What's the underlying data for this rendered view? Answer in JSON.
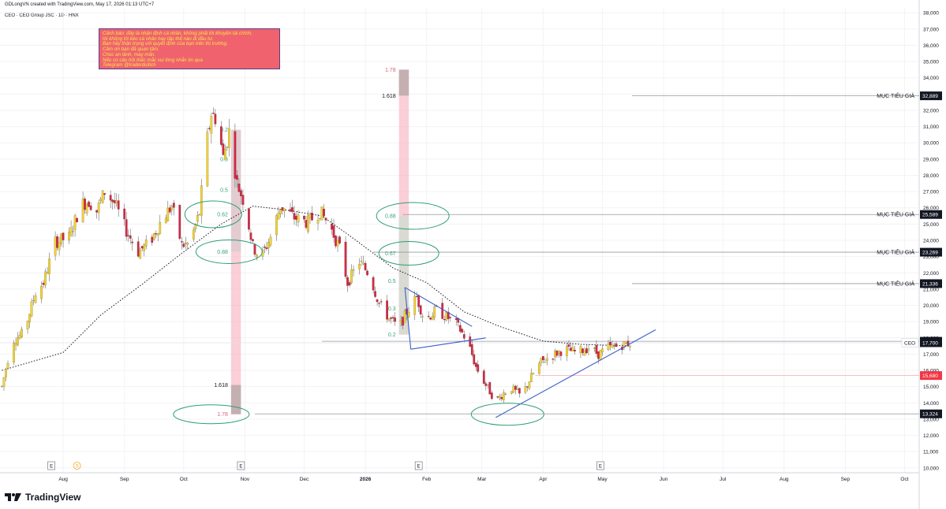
{
  "header": {
    "attribution": "GDLongVN created with TradingView.com, May 17, 2026 01:13 UTC+7",
    "symbol_line": "CEO · CEO Group JSC · 1D · HNX"
  },
  "disclaimer": [
    "Cảnh báo: đây là nhận định cá nhân, không phải lời khuyên tài chính,",
    "tôi không lôi kéo cá nhân hay tập thể nào đi đầu tư.",
    "Bạn hãy thận trọng với quyết định của bạn trên thị trường.",
    "Cảm ơn bạn đã quan tâm.",
    "Chúc an lành, may mắn.",
    "Nếu có câu hỏi thắc mắc vui lòng nhắn tin qua",
    "Telegram @traderduitich"
  ],
  "footer": {
    "brand": "TradingView"
  },
  "colors": {
    "bull": "#f2d23c",
    "bear": "#d42a45",
    "trend": "#3b5fc9",
    "ellipse": "#2e9e78",
    "target_tag": "#131722",
    "support_tag": "#131722",
    "cutloss_tag": "#f23645",
    "fib_pink": "#f7a8b8",
    "fib_gray": "#b8a8a8"
  },
  "chart_data": {
    "type": "candlestick",
    "symbol": "CEO",
    "y_ticks": [
      10000,
      11000,
      12000,
      13000,
      14000,
      15000,
      16000,
      17000,
      18000,
      19000,
      20000,
      21000,
      22000,
      23000,
      24000,
      25000,
      26000,
      27000,
      28000,
      29000,
      30000,
      31000,
      32000,
      33000,
      34000,
      35000,
      36000,
      37000,
      38000
    ],
    "y_tick_labels": [
      "10,000",
      "11,000",
      "12,000",
      "13,000",
      "14,000",
      "15,000",
      "16,000",
      "17,000",
      "18,000",
      "19,000",
      "20,000",
      "21,000",
      "22,000",
      "23,000",
      "24,000",
      "25,000",
      "26,000",
      "27,000",
      "28,000",
      "29,000",
      "30,000",
      "31,000",
      "32,000",
      "33,000",
      "34,000",
      "35,000",
      "36,000",
      "37,000",
      "38,000"
    ],
    "ylim": [
      9700,
      38300
    ],
    "x_labels": [
      {
        "date": "2025-08-01",
        "label": "Aug",
        "bold": false
      },
      {
        "date": "2025-09-01",
        "label": "Sep",
        "bold": false
      },
      {
        "date": "2025-10-01",
        "label": "Oct",
        "bold": false
      },
      {
        "date": "2025-11-01",
        "label": "Nov",
        "bold": false
      },
      {
        "date": "2025-12-01",
        "label": "Dec",
        "bold": false
      },
      {
        "date": "2026-01-01",
        "label": "2026",
        "bold": true
      },
      {
        "date": "2026-02-01",
        "label": "Feb",
        "bold": false
      },
      {
        "date": "2026-03-01",
        "label": "Mar",
        "bold": false
      },
      {
        "date": "2026-04-01",
        "label": "Apr",
        "bold": false
      },
      {
        "date": "2026-05-01",
        "label": "May",
        "bold": false
      },
      {
        "date": "2026-06-01",
        "label": "Jun",
        "bold": false
      },
      {
        "date": "2026-07-01",
        "label": "Jul",
        "bold": false
      },
      {
        "date": "2026-08-01",
        "label": "Aug",
        "bold": false
      },
      {
        "date": "2026-09-01",
        "label": "Sep",
        "bold": false
      },
      {
        "date": "2026-10-01",
        "label": "Oct",
        "bold": false
      }
    ],
    "xlim": [
      "2025-06-30",
      "2026-10-08"
    ],
    "price_path": [
      [
        "2025-07-01",
        15000
      ],
      [
        "2025-07-06",
        17800
      ],
      [
        "2025-07-12",
        18300
      ],
      [
        "2025-07-18",
        20800
      ],
      [
        "2025-07-22",
        21400
      ],
      [
        "2025-07-28",
        23900
      ],
      [
        "2025-08-04",
        24200
      ],
      [
        "2025-08-10",
        26200
      ],
      [
        "2025-08-14",
        26400
      ],
      [
        "2025-08-18",
        25800
      ],
      [
        "2025-08-22",
        27000
      ],
      [
        "2025-08-27",
        26300
      ],
      [
        "2025-09-02",
        24600
      ],
      [
        "2025-09-08",
        23300
      ],
      [
        "2025-09-14",
        23900
      ],
      [
        "2025-09-20",
        25300
      ],
      [
        "2025-09-25",
        26100
      ],
      [
        "2025-09-30",
        23700
      ],
      [
        "2025-10-04",
        23800
      ],
      [
        "2025-10-09",
        25700
      ],
      [
        "2025-10-12",
        29500
      ],
      [
        "2025-10-15",
        31800
      ],
      [
        "2025-10-18",
        31400
      ],
      [
        "2025-10-21",
        29100
      ],
      [
        "2025-10-24",
        30700
      ],
      [
        "2025-10-28",
        27500
      ],
      [
        "2025-11-01",
        26200
      ],
      [
        "2025-11-05",
        23600
      ],
      [
        "2025-11-09",
        22900
      ],
      [
        "2025-11-14",
        24200
      ],
      [
        "2025-11-19",
        26100
      ],
      [
        "2025-11-26",
        25400
      ],
      [
        "2025-12-03",
        25100
      ],
      [
        "2025-12-09",
        25800
      ],
      [
        "2025-12-14",
        24900
      ],
      [
        "2025-12-19",
        23500
      ],
      [
        "2025-12-23",
        21400
      ],
      [
        "2025-12-29",
        22700
      ],
      [
        "2026-01-03",
        21900
      ],
      [
        "2026-01-08",
        20100
      ],
      [
        "2026-01-13",
        19200
      ],
      [
        "2026-01-18",
        18600
      ],
      [
        "2026-01-22",
        19600
      ],
      [
        "2026-01-27",
        20500
      ],
      [
        "2026-01-31",
        19100
      ],
      [
        "2026-02-06",
        19700
      ],
      [
        "2026-02-11",
        19300
      ],
      [
        "2026-02-15",
        19000
      ],
      [
        "2026-02-18",
        18500
      ],
      [
        "2026-02-22",
        17700
      ],
      [
        "2026-02-26",
        16200
      ],
      [
        "2026-03-03",
        15100
      ],
      [
        "2026-03-08",
        14100
      ],
      [
        "2026-03-12",
        14600
      ],
      [
        "2026-03-16",
        14900
      ],
      [
        "2026-03-21",
        14400
      ],
      [
        "2026-03-26",
        15600
      ],
      [
        "2026-03-31",
        16500
      ],
      [
        "2026-04-05",
        16900
      ],
      [
        "2026-04-12",
        17300
      ],
      [
        "2026-04-18",
        17100
      ],
      [
        "2026-04-24",
        17400
      ],
      [
        "2026-04-29",
        17000
      ],
      [
        "2026-05-04",
        17400
      ],
      [
        "2026-05-09",
        17500
      ],
      [
        "2026-05-15",
        17700
      ]
    ],
    "ma_path": [
      [
        "2025-07-01",
        16000
      ],
      [
        "2025-08-01",
        17100
      ],
      [
        "2025-08-20",
        19400
      ],
      [
        "2025-09-10",
        21300
      ],
      [
        "2025-09-30",
        23200
      ],
      [
        "2025-10-20",
        25000
      ],
      [
        "2025-11-05",
        26100
      ],
      [
        "2025-11-20",
        25900
      ],
      [
        "2025-12-10",
        25500
      ],
      [
        "2025-12-25",
        24200
      ],
      [
        "2026-01-15",
        22300
      ],
      [
        "2026-02-01",
        21400
      ],
      [
        "2026-02-20",
        19600
      ],
      [
        "2026-03-10",
        18700
      ],
      [
        "2026-04-01",
        17800
      ],
      [
        "2026-04-20",
        17600
      ],
      [
        "2026-05-15",
        17500
      ]
    ],
    "trend_lines": [
      {
        "name": "triangle-upper",
        "from": [
          "2026-01-21",
          21100
        ],
        "to": [
          "2026-02-24",
          18700
        ]
      },
      {
        "name": "triangle-lower",
        "from": [
          "2026-01-24",
          17300
        ],
        "to": [
          "2026-03-03",
          18000
        ]
      },
      {
        "name": "triangle-close",
        "from": [
          "2026-01-21",
          21100
        ],
        "to": [
          "2026-01-24",
          17300
        ]
      },
      {
        "name": "uptrend-support",
        "from": [
          "2026-03-08",
          13100
        ],
        "to": [
          "2026-05-28",
          18500
        ]
      }
    ],
    "horizontal_levels": [
      {
        "name": "target-1",
        "price": 32889,
        "label": "32,889",
        "title": "MỤC TIÊU GIÁ",
        "from": "2026-05-16",
        "tag": "target"
      },
      {
        "name": "target-2",
        "price": 25589,
        "label": "25,589",
        "title": "MỤC TIÊU GIÁ",
        "from": "2026-01-20",
        "tag": "target"
      },
      {
        "name": "target-3",
        "price": 23269,
        "label": "23,269",
        "title": "MỤC TIÊU GIÁ",
        "from": "2026-01-05",
        "tag": "target"
      },
      {
        "name": "target-4",
        "price": 21336,
        "label": "21,336",
        "title": "MỤC TIÊU GIÁ",
        "from": "2026-05-16",
        "tag": "target"
      },
      {
        "name": "resistance",
        "price": 17790,
        "label": "17,790",
        "title": "",
        "from": "2025-12-10",
        "tag": "target"
      },
      {
        "name": "last-price",
        "price": 17700,
        "label": "17,700",
        "title": "CEO",
        "from": "2025-06-30",
        "tag": "last"
      },
      {
        "name": "cut-loss",
        "price": 15680,
        "label": "15,680",
        "title": "",
        "from": "2026-03-28",
        "tag": "cutloss"
      },
      {
        "name": "support",
        "price": 13324,
        "label": "13,324",
        "title": "",
        "from": "2025-11-06",
        "tag": "support"
      }
    ],
    "fib_down": {
      "x": "2025-10-25",
      "x_end": "2025-10-30",
      "levels": [
        {
          "ratio": "0.2",
          "price": 30800
        },
        {
          "ratio": "0.3",
          "price": 29000
        },
        {
          "ratio": "0.5",
          "price": 27100
        },
        {
          "ratio": "0.62",
          "price": 25600
        },
        {
          "ratio": "0.88",
          "price": 23300
        },
        {
          "ratio": "1.618",
          "price": 15100
        },
        {
          "ratio": "1.78",
          "price": 13300
        }
      ]
    },
    "fib_up": {
      "x": "2026-01-18",
      "x_end": "2026-01-23",
      "levels": [
        {
          "ratio": "0.2",
          "price": 18200
        },
        {
          "ratio": "0.3",
          "price": 19800
        },
        {
          "ratio": "0.5",
          "price": 21500
        },
        {
          "ratio": "0.67",
          "price": 23200
        },
        {
          "ratio": "0.88",
          "price": 25500
        },
        {
          "ratio": "1.618",
          "price": 32900
        },
        {
          "ratio": "1.78",
          "price": 34500
        }
      ]
    },
    "events": [
      {
        "date": "2025-07-26",
        "label": "E"
      },
      {
        "date": "2025-08-08",
        "label": "S"
      },
      {
        "date": "2025-10-30",
        "label": "E"
      },
      {
        "date": "2026-01-28",
        "label": "E"
      },
      {
        "date": "2026-04-30",
        "label": "E"
      }
    ]
  }
}
